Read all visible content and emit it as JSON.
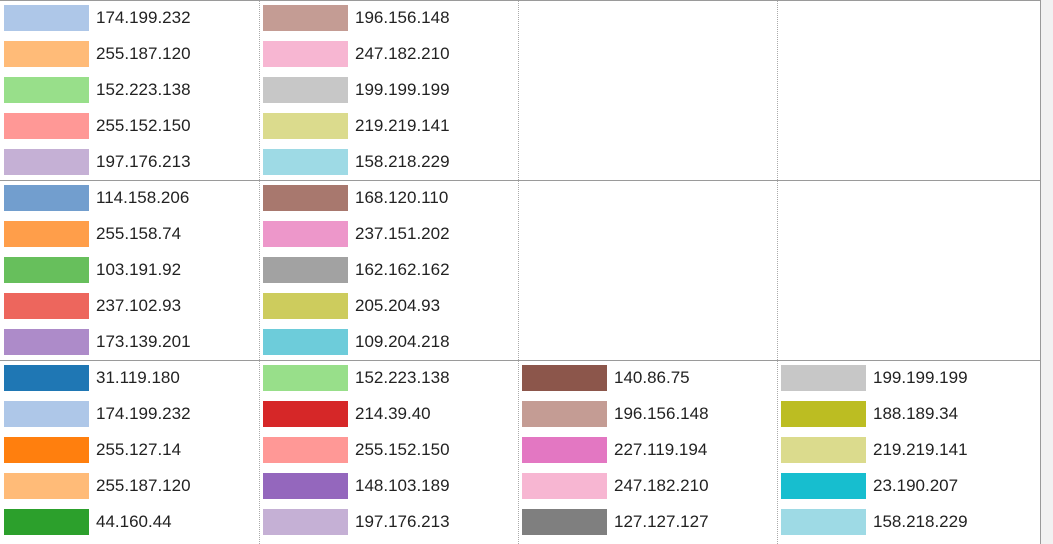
{
  "palette": {
    "groups": [
      {
        "columns": [
          [
            {
              "label": "174.199.232",
              "color": "#aec7e8"
            },
            {
              "label": "255.187.120",
              "color": "#ffbb78"
            },
            {
              "label": "152.223.138",
              "color": "#98df8a"
            },
            {
              "label": "255.152.150",
              "color": "#ff9896"
            },
            {
              "label": "197.176.213",
              "color": "#c5b0d5"
            }
          ],
          [
            {
              "label": "196.156.148",
              "color": "#c49c94"
            },
            {
              "label": "247.182.210",
              "color": "#f7b6d2"
            },
            {
              "label": "199.199.199",
              "color": "#c7c7c7"
            },
            {
              "label": "219.219.141",
              "color": "#dbdb8d"
            },
            {
              "label": "158.218.229",
              "color": "#9edae5"
            }
          ]
        ]
      },
      {
        "columns": [
          [
            {
              "label": "114.158.206",
              "color": "#729ece"
            },
            {
              "label": "255.158.74",
              "color": "#ff9e4a"
            },
            {
              "label": "103.191.92",
              "color": "#67bf5c"
            },
            {
              "label": "237.102.93",
              "color": "#ed665d"
            },
            {
              "label": "173.139.201",
              "color": "#ad8bc9"
            }
          ],
          [
            {
              "label": "168.120.110",
              "color": "#a8786e"
            },
            {
              "label": "237.151.202",
              "color": "#ed97ca"
            },
            {
              "label": "162.162.162",
              "color": "#a2a2a2"
            },
            {
              "label": "205.204.93",
              "color": "#cdcc5d"
            },
            {
              "label": "109.204.218",
              "color": "#6dccda"
            }
          ]
        ]
      },
      {
        "columns": [
          [
            {
              "label": "31.119.180",
              "color": "#1f77b4"
            },
            {
              "label": "174.199.232",
              "color": "#aec7e8"
            },
            {
              "label": "255.127.14",
              "color": "#ff7f0e"
            },
            {
              "label": "255.187.120",
              "color": "#ffbb78"
            },
            {
              "label": "44.160.44",
              "color": "#2ca02c"
            }
          ],
          [
            {
              "label": "152.223.138",
              "color": "#98df8a"
            },
            {
              "label": "214.39.40",
              "color": "#d62728"
            },
            {
              "label": "255.152.150",
              "color": "#ff9896"
            },
            {
              "label": "148.103.189",
              "color": "#9467bd"
            },
            {
              "label": "197.176.213",
              "color": "#c5b0d5"
            }
          ],
          [
            {
              "label": "140.86.75",
              "color": "#8c564b"
            },
            {
              "label": "196.156.148",
              "color": "#c49c94"
            },
            {
              "label": "227.119.194",
              "color": "#e377c2"
            },
            {
              "label": "247.182.210",
              "color": "#f7b6d2"
            },
            {
              "label": "127.127.127",
              "color": "#7f7f7f"
            }
          ],
          [
            {
              "label": "199.199.199",
              "color": "#c7c7c7"
            },
            {
              "label": "188.189.34",
              "color": "#bcbd22"
            },
            {
              "label": "219.219.141",
              "color": "#dbdb8d"
            },
            {
              "label": "23.190.207",
              "color": "#17becf"
            },
            {
              "label": "158.218.229",
              "color": "#9edae5"
            }
          ]
        ]
      }
    ]
  }
}
